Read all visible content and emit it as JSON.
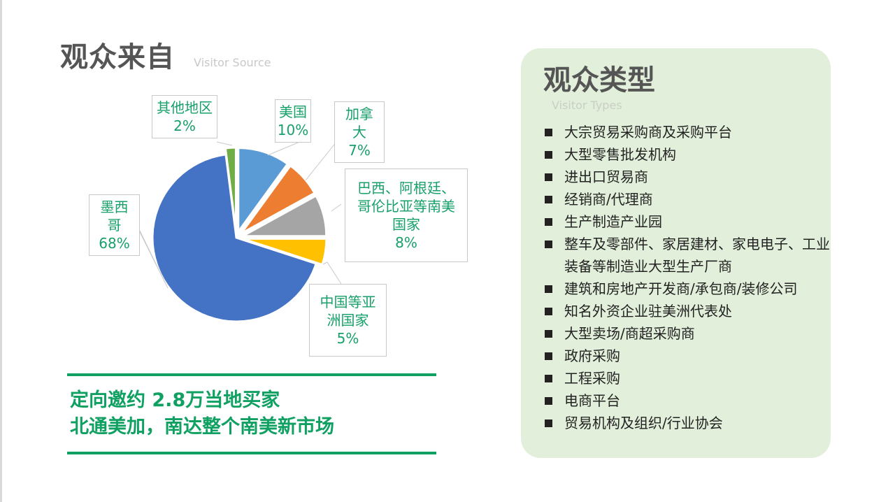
{
  "left": {
    "title": "观众来自",
    "subtitle": "Visitor Source"
  },
  "chart_data": {
    "type": "pie",
    "start_angle": "12 o'clock, clockwise",
    "slices": [
      {
        "label": "美国",
        "value": 10,
        "display": "10%",
        "color": "#5b9bd5"
      },
      {
        "label": "加拿大",
        "value": 7,
        "display": "7%",
        "color": "#ed7d31"
      },
      {
        "label": "巴西、阿根廷、哥伦比亚等南美国家",
        "value": 8,
        "display": "8%",
        "color": "#a5a5a5"
      },
      {
        "label": "中国等亚洲国家",
        "value": 5,
        "display": "5%",
        "color": "#ffc000"
      },
      {
        "label": "墨西哥",
        "value": 68,
        "display": "68%",
        "color": "#4472c4"
      },
      {
        "label": "其他地区",
        "value": 2,
        "display": "2%",
        "color": "#70ad47"
      }
    ],
    "label_color": "#17a06a"
  },
  "headline": {
    "line1": "定向邀约 2.8万当地买家",
    "line2": "北通美加，南达整个南美新市场"
  },
  "panel": {
    "title": "观众类型",
    "subtitle": "Visitor Types",
    "items": [
      "大宗贸易采购商及采购平台",
      "大型零售批发机构",
      "进出口贸易商",
      "经销商/代理商",
      "生产制造产业园",
      "整车及零部件、家居建材、家电电子、工业装备等制造业大型生产厂商",
      "建筑和房地产开发商/承包商/装修公司",
      "知名外资企业驻美洲代表处",
      "大型卖场/商超采购商",
      "政府采购",
      "工程采购",
      "电商平台",
      "贸易机构及组织/行业协会"
    ]
  }
}
